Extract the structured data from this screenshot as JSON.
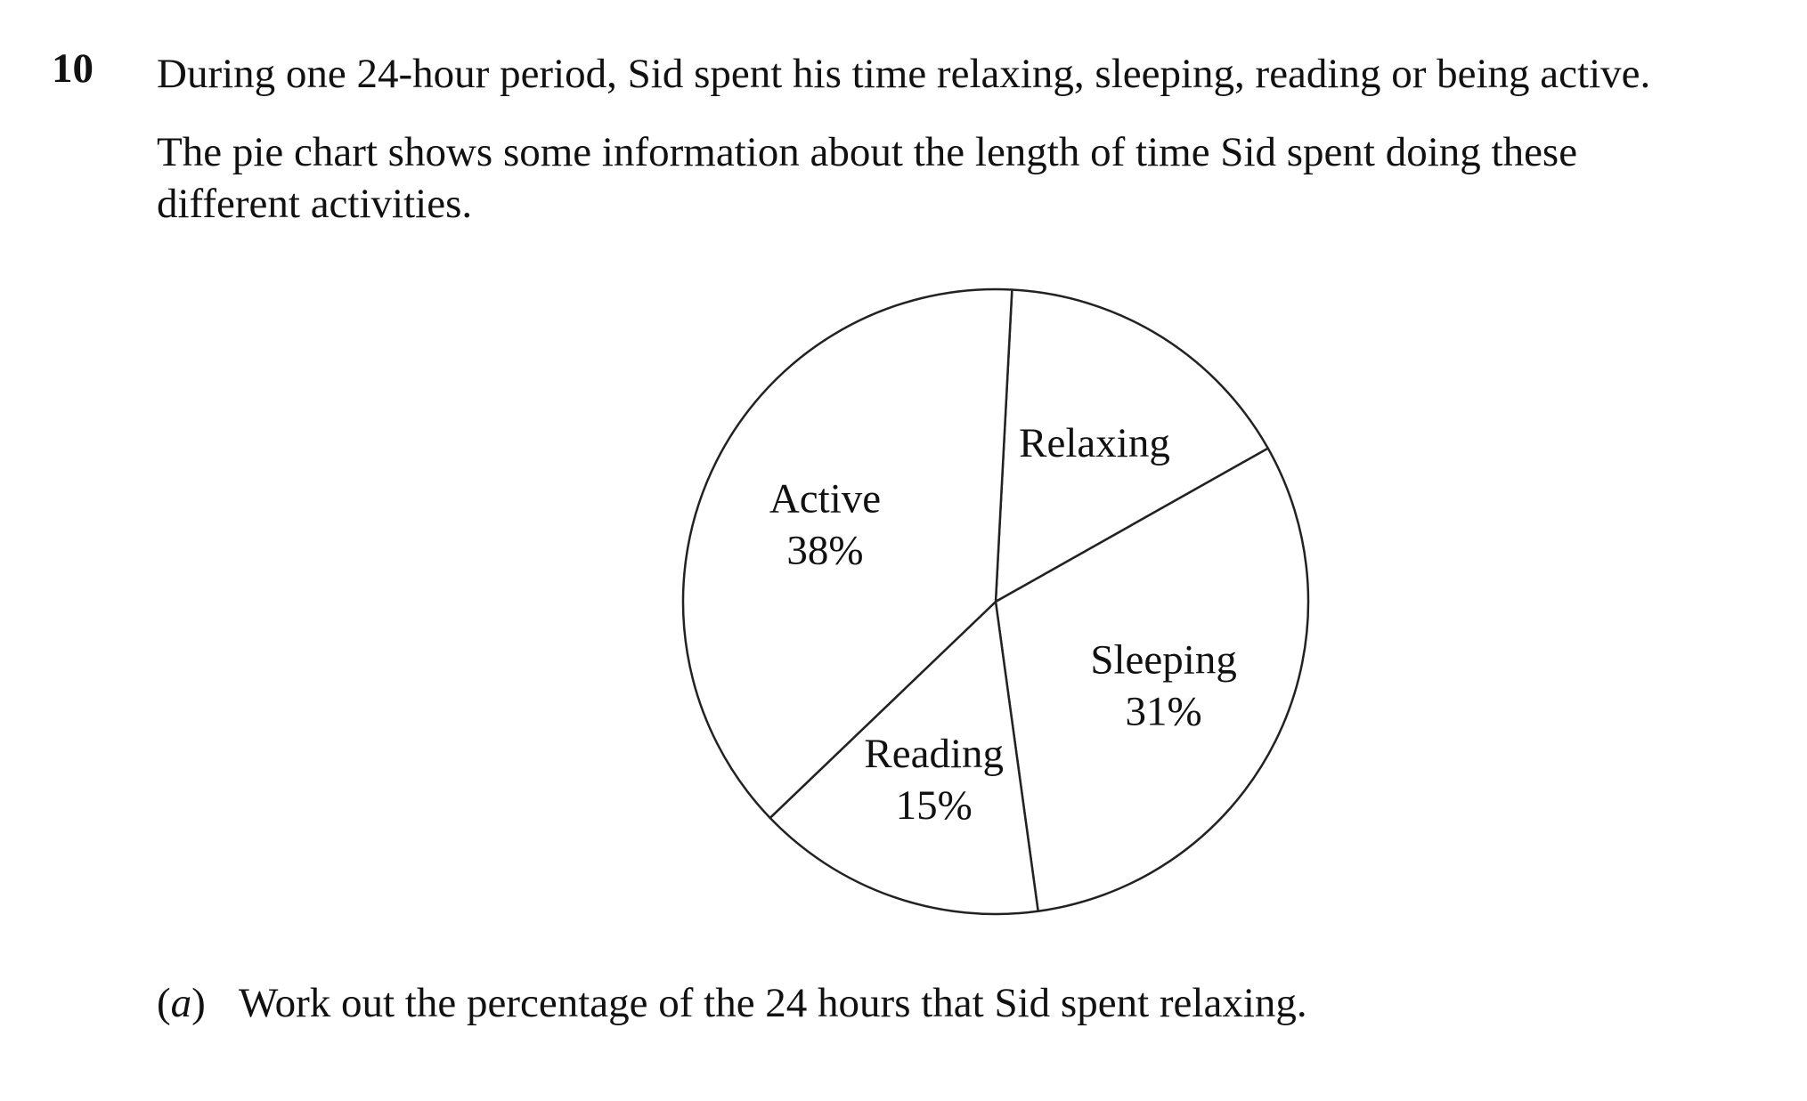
{
  "question": {
    "number": "10",
    "intro": "During one 24-hour period, Sid spent his time relaxing, sleeping, reading or being active.",
    "description_line1": "The pie chart shows some information about the length of time Sid spent doing these",
    "description_line2": "different activities.",
    "part_a": {
      "letter": "a",
      "text": "Work out the percentage of the 24 hours that Sid spent relaxing."
    }
  },
  "chart_data": {
    "type": "pie",
    "title": "",
    "slices": [
      {
        "name": "Relaxing",
        "value": 16,
        "value_label": ""
      },
      {
        "name": "Sleeping",
        "value": 31,
        "value_label": "31%"
      },
      {
        "name": "Reading",
        "value": 15,
        "value_label": "15%"
      },
      {
        "name": "Active",
        "value": 38,
        "value_label": "38%"
      }
    ],
    "start": "top, slightly right of vertical",
    "direction": "clockwise",
    "fill": "#ffffff",
    "stroke": "#222222"
  }
}
